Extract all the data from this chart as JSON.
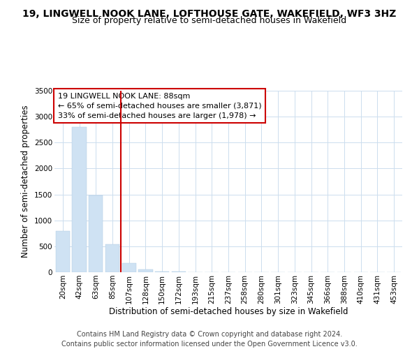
{
  "title": "19, LINGWELL NOOK LANE, LOFTHOUSE GATE, WAKEFIELD, WF3 3HZ",
  "subtitle": "Size of property relative to semi-detached houses in Wakefield",
  "xlabel": "Distribution of semi-detached houses by size in Wakefield",
  "ylabel": "Number of semi-detached properties",
  "categories": [
    "20sqm",
    "42sqm",
    "63sqm",
    "85sqm",
    "107sqm",
    "128sqm",
    "150sqm",
    "172sqm",
    "193sqm",
    "215sqm",
    "237sqm",
    "258sqm",
    "280sqm",
    "301sqm",
    "323sqm",
    "345sqm",
    "366sqm",
    "388sqm",
    "410sqm",
    "431sqm",
    "453sqm"
  ],
  "values": [
    800,
    2800,
    1480,
    540,
    175,
    60,
    20,
    8,
    4,
    2,
    1,
    1,
    0,
    0,
    0,
    0,
    0,
    0,
    0,
    0,
    0
  ],
  "property_line_index": 3,
  "property_sqm": "88sqm",
  "pct_smaller": 65,
  "count_smaller": 3871,
  "pct_larger": 33,
  "count_larger": 1978,
  "bar_color": "#cfe2f3",
  "line_color": "#cc0000",
  "annotation_box_color": "#cc0000",
  "ylim": [
    0,
    3500
  ],
  "yticks": [
    0,
    500,
    1000,
    1500,
    2000,
    2500,
    3000,
    3500
  ],
  "footer_line1": "Contains HM Land Registry data © Crown copyright and database right 2024.",
  "footer_line2": "Contains public sector information licensed under the Open Government Licence v3.0.",
  "title_fontsize": 10,
  "subtitle_fontsize": 9,
  "axis_label_fontsize": 8.5,
  "tick_fontsize": 7.5,
  "annotation_fontsize": 8,
  "footer_fontsize": 7,
  "background_color": "#ffffff",
  "grid_color": "#ccddee"
}
